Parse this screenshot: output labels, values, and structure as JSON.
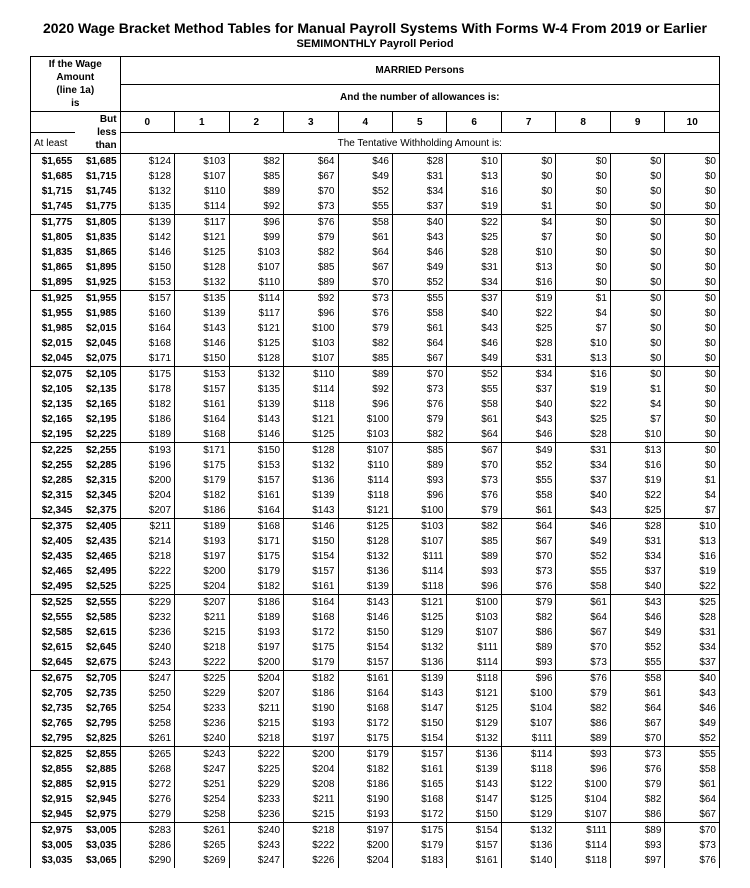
{
  "title": "2020 Wage Bracket Method Tables for Manual Payroll Systems With Forms W-4 From 2019 or Earlier",
  "pay_period": "SEMIMONTHLY Payroll Period",
  "wage_amount_label_1": "If the ",
  "wage_amount_label_bold": "Wage Amount",
  "wage_amount_label_2": "(line 1a)",
  "wage_amount_label_3": "is",
  "status_bold": "MARRIED",
  "status_rest": " Persons",
  "allowances_label": "And the number of allowances is:",
  "atleast_label": "At least",
  "butless_label": "But less than",
  "withholding_label": "The Tentative Withholding Amount is:",
  "allowance_headers": [
    "0",
    "1",
    "2",
    "3",
    "4",
    "5",
    "6",
    "7",
    "8",
    "9",
    "10"
  ],
  "rows": [
    {
      "lo": "$1,655",
      "hi": "$1,685",
      "a": [
        "$124",
        "$103",
        "$82",
        "$64",
        "$46",
        "$28",
        "$10",
        "$0",
        "$0",
        "$0",
        "$0"
      ]
    },
    {
      "lo": "$1,685",
      "hi": "$1,715",
      "a": [
        "$128",
        "$107",
        "$85",
        "$67",
        "$49",
        "$31",
        "$13",
        "$0",
        "$0",
        "$0",
        "$0"
      ]
    },
    {
      "lo": "$1,715",
      "hi": "$1,745",
      "a": [
        "$132",
        "$110",
        "$89",
        "$70",
        "$52",
        "$34",
        "$16",
        "$0",
        "$0",
        "$0",
        "$0"
      ]
    },
    {
      "lo": "$1,745",
      "hi": "$1,775",
      "a": [
        "$135",
        "$114",
        "$92",
        "$73",
        "$55",
        "$37",
        "$19",
        "$1",
        "$0",
        "$0",
        "$0"
      ],
      "sep": true
    },
    {
      "lo": "$1,775",
      "hi": "$1,805",
      "a": [
        "$139",
        "$117",
        "$96",
        "$76",
        "$58",
        "$40",
        "$22",
        "$4",
        "$0",
        "$0",
        "$0"
      ]
    },
    {
      "lo": "$1,805",
      "hi": "$1,835",
      "a": [
        "$142",
        "$121",
        "$99",
        "$79",
        "$61",
        "$43",
        "$25",
        "$7",
        "$0",
        "$0",
        "$0"
      ]
    },
    {
      "lo": "$1,835",
      "hi": "$1,865",
      "a": [
        "$146",
        "$125",
        "$103",
        "$82",
        "$64",
        "$46",
        "$28",
        "$10",
        "$0",
        "$0",
        "$0"
      ]
    },
    {
      "lo": "$1,865",
      "hi": "$1,895",
      "a": [
        "$150",
        "$128",
        "$107",
        "$85",
        "$67",
        "$49",
        "$31",
        "$13",
        "$0",
        "$0",
        "$0"
      ]
    },
    {
      "lo": "$1,895",
      "hi": "$1,925",
      "a": [
        "$153",
        "$132",
        "$110",
        "$89",
        "$70",
        "$52",
        "$34",
        "$16",
        "$0",
        "$0",
        "$0"
      ],
      "sep": true
    },
    {
      "lo": "$1,925",
      "hi": "$1,955",
      "a": [
        "$157",
        "$135",
        "$114",
        "$92",
        "$73",
        "$55",
        "$37",
        "$19",
        "$1",
        "$0",
        "$0"
      ]
    },
    {
      "lo": "$1,955",
      "hi": "$1,985",
      "a": [
        "$160",
        "$139",
        "$117",
        "$96",
        "$76",
        "$58",
        "$40",
        "$22",
        "$4",
        "$0",
        "$0"
      ]
    },
    {
      "lo": "$1,985",
      "hi": "$2,015",
      "a": [
        "$164",
        "$143",
        "$121",
        "$100",
        "$79",
        "$61",
        "$43",
        "$25",
        "$7",
        "$0",
        "$0"
      ]
    },
    {
      "lo": "$2,015",
      "hi": "$2,045",
      "a": [
        "$168",
        "$146",
        "$125",
        "$103",
        "$82",
        "$64",
        "$46",
        "$28",
        "$10",
        "$0",
        "$0"
      ]
    },
    {
      "lo": "$2,045",
      "hi": "$2,075",
      "a": [
        "$171",
        "$150",
        "$128",
        "$107",
        "$85",
        "$67",
        "$49",
        "$31",
        "$13",
        "$0",
        "$0"
      ],
      "sep": true
    },
    {
      "lo": "$2,075",
      "hi": "$2,105",
      "a": [
        "$175",
        "$153",
        "$132",
        "$110",
        "$89",
        "$70",
        "$52",
        "$34",
        "$16",
        "$0",
        "$0"
      ]
    },
    {
      "lo": "$2,105",
      "hi": "$2,135",
      "a": [
        "$178",
        "$157",
        "$135",
        "$114",
        "$92",
        "$73",
        "$55",
        "$37",
        "$19",
        "$1",
        "$0"
      ]
    },
    {
      "lo": "$2,135",
      "hi": "$2,165",
      "a": [
        "$182",
        "$161",
        "$139",
        "$118",
        "$96",
        "$76",
        "$58",
        "$40",
        "$22",
        "$4",
        "$0"
      ]
    },
    {
      "lo": "$2,165",
      "hi": "$2,195",
      "a": [
        "$186",
        "$164",
        "$143",
        "$121",
        "$100",
        "$79",
        "$61",
        "$43",
        "$25",
        "$7",
        "$0"
      ]
    },
    {
      "lo": "$2,195",
      "hi": "$2,225",
      "a": [
        "$189",
        "$168",
        "$146",
        "$125",
        "$103",
        "$82",
        "$64",
        "$46",
        "$28",
        "$10",
        "$0"
      ],
      "sep": true
    },
    {
      "lo": "$2,225",
      "hi": "$2,255",
      "a": [
        "$193",
        "$171",
        "$150",
        "$128",
        "$107",
        "$85",
        "$67",
        "$49",
        "$31",
        "$13",
        "$0"
      ]
    },
    {
      "lo": "$2,255",
      "hi": "$2,285",
      "a": [
        "$196",
        "$175",
        "$153",
        "$132",
        "$110",
        "$89",
        "$70",
        "$52",
        "$34",
        "$16",
        "$0"
      ]
    },
    {
      "lo": "$2,285",
      "hi": "$2,315",
      "a": [
        "$200",
        "$179",
        "$157",
        "$136",
        "$114",
        "$93",
        "$73",
        "$55",
        "$37",
        "$19",
        "$1"
      ]
    },
    {
      "lo": "$2,315",
      "hi": "$2,345",
      "a": [
        "$204",
        "$182",
        "$161",
        "$139",
        "$118",
        "$96",
        "$76",
        "$58",
        "$40",
        "$22",
        "$4"
      ]
    },
    {
      "lo": "$2,345",
      "hi": "$2,375",
      "a": [
        "$207",
        "$186",
        "$164",
        "$143",
        "$121",
        "$100",
        "$79",
        "$61",
        "$43",
        "$25",
        "$7"
      ],
      "sep": true
    },
    {
      "lo": "$2,375",
      "hi": "$2,405",
      "a": [
        "$211",
        "$189",
        "$168",
        "$146",
        "$125",
        "$103",
        "$82",
        "$64",
        "$46",
        "$28",
        "$10"
      ]
    },
    {
      "lo": "$2,405",
      "hi": "$2,435",
      "a": [
        "$214",
        "$193",
        "$171",
        "$150",
        "$128",
        "$107",
        "$85",
        "$67",
        "$49",
        "$31",
        "$13"
      ]
    },
    {
      "lo": "$2,435",
      "hi": "$2,465",
      "a": [
        "$218",
        "$197",
        "$175",
        "$154",
        "$132",
        "$111",
        "$89",
        "$70",
        "$52",
        "$34",
        "$16"
      ]
    },
    {
      "lo": "$2,465",
      "hi": "$2,495",
      "a": [
        "$222",
        "$200",
        "$179",
        "$157",
        "$136",
        "$114",
        "$93",
        "$73",
        "$55",
        "$37",
        "$19"
      ]
    },
    {
      "lo": "$2,495",
      "hi": "$2,525",
      "a": [
        "$225",
        "$204",
        "$182",
        "$161",
        "$139",
        "$118",
        "$96",
        "$76",
        "$58",
        "$40",
        "$22"
      ],
      "sep": true
    },
    {
      "lo": "$2,525",
      "hi": "$2,555",
      "a": [
        "$229",
        "$207",
        "$186",
        "$164",
        "$143",
        "$121",
        "$100",
        "$79",
        "$61",
        "$43",
        "$25"
      ]
    },
    {
      "lo": "$2,555",
      "hi": "$2,585",
      "a": [
        "$232",
        "$211",
        "$189",
        "$168",
        "$146",
        "$125",
        "$103",
        "$82",
        "$64",
        "$46",
        "$28"
      ]
    },
    {
      "lo": "$2,585",
      "hi": "$2,615",
      "a": [
        "$236",
        "$215",
        "$193",
        "$172",
        "$150",
        "$129",
        "$107",
        "$86",
        "$67",
        "$49",
        "$31"
      ]
    },
    {
      "lo": "$2,615",
      "hi": "$2,645",
      "a": [
        "$240",
        "$218",
        "$197",
        "$175",
        "$154",
        "$132",
        "$111",
        "$89",
        "$70",
        "$52",
        "$34"
      ]
    },
    {
      "lo": "$2,645",
      "hi": "$2,675",
      "a": [
        "$243",
        "$222",
        "$200",
        "$179",
        "$157",
        "$136",
        "$114",
        "$93",
        "$73",
        "$55",
        "$37"
      ],
      "sep": true
    },
    {
      "lo": "$2,675",
      "hi": "$2,705",
      "a": [
        "$247",
        "$225",
        "$204",
        "$182",
        "$161",
        "$139",
        "$118",
        "$96",
        "$76",
        "$58",
        "$40"
      ]
    },
    {
      "lo": "$2,705",
      "hi": "$2,735",
      "a": [
        "$250",
        "$229",
        "$207",
        "$186",
        "$164",
        "$143",
        "$121",
        "$100",
        "$79",
        "$61",
        "$43"
      ]
    },
    {
      "lo": "$2,735",
      "hi": "$2,765",
      "a": [
        "$254",
        "$233",
        "$211",
        "$190",
        "$168",
        "$147",
        "$125",
        "$104",
        "$82",
        "$64",
        "$46"
      ]
    },
    {
      "lo": "$2,765",
      "hi": "$2,795",
      "a": [
        "$258",
        "$236",
        "$215",
        "$193",
        "$172",
        "$150",
        "$129",
        "$107",
        "$86",
        "$67",
        "$49"
      ]
    },
    {
      "lo": "$2,795",
      "hi": "$2,825",
      "a": [
        "$261",
        "$240",
        "$218",
        "$197",
        "$175",
        "$154",
        "$132",
        "$111",
        "$89",
        "$70",
        "$52"
      ],
      "sep": true
    },
    {
      "lo": "$2,825",
      "hi": "$2,855",
      "a": [
        "$265",
        "$243",
        "$222",
        "$200",
        "$179",
        "$157",
        "$136",
        "$114",
        "$93",
        "$73",
        "$55"
      ]
    },
    {
      "lo": "$2,855",
      "hi": "$2,885",
      "a": [
        "$268",
        "$247",
        "$225",
        "$204",
        "$182",
        "$161",
        "$139",
        "$118",
        "$96",
        "$76",
        "$58"
      ]
    },
    {
      "lo": "$2,885",
      "hi": "$2,915",
      "a": [
        "$272",
        "$251",
        "$229",
        "$208",
        "$186",
        "$165",
        "$143",
        "$122",
        "$100",
        "$79",
        "$61"
      ]
    },
    {
      "lo": "$2,915",
      "hi": "$2,945",
      "a": [
        "$276",
        "$254",
        "$233",
        "$211",
        "$190",
        "$168",
        "$147",
        "$125",
        "$104",
        "$82",
        "$64"
      ]
    },
    {
      "lo": "$2,945",
      "hi": "$2,975",
      "a": [
        "$279",
        "$258",
        "$236",
        "$215",
        "$193",
        "$172",
        "$150",
        "$129",
        "$107",
        "$86",
        "$67"
      ],
      "sep": true
    },
    {
      "lo": "$2,975",
      "hi": "$3,005",
      "a": [
        "$283",
        "$261",
        "$240",
        "$218",
        "$197",
        "$175",
        "$154",
        "$132",
        "$111",
        "$89",
        "$70"
      ]
    },
    {
      "lo": "$3,005",
      "hi": "$3,035",
      "a": [
        "$286",
        "$265",
        "$243",
        "$222",
        "$200",
        "$179",
        "$157",
        "$136",
        "$114",
        "$93",
        "$73"
      ]
    },
    {
      "lo": "$3,035",
      "hi": "$3,065",
      "a": [
        "$290",
        "$269",
        "$247",
        "$226",
        "$204",
        "$183",
        "$161",
        "$140",
        "$118",
        "$97",
        "$76"
      ]
    }
  ]
}
